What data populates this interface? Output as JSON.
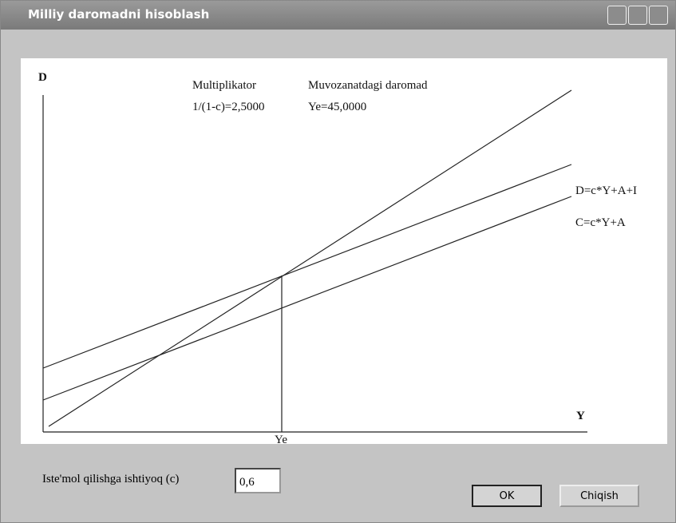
{
  "window": {
    "title": "Milliy daromadni hisoblash"
  },
  "plot": {
    "y_axis_label": "D",
    "x_axis_label": "Y",
    "equilibrium_label": "Ye",
    "multiplier_caption": "Multiplikator",
    "multiplier_value": "1/(1-c)=2,5000",
    "income_caption": "Muvozanatdagi daromad",
    "income_value": "Ye=45,0000",
    "line_labels": [
      "D=c*Y+A+I",
      "C=c*Y+A"
    ]
  },
  "form": {
    "label": "Iste'mol qilishga ishtiyoq (c)",
    "input_value": "0,6"
  },
  "buttons": [
    "OK",
    "Chiqish"
  ]
}
